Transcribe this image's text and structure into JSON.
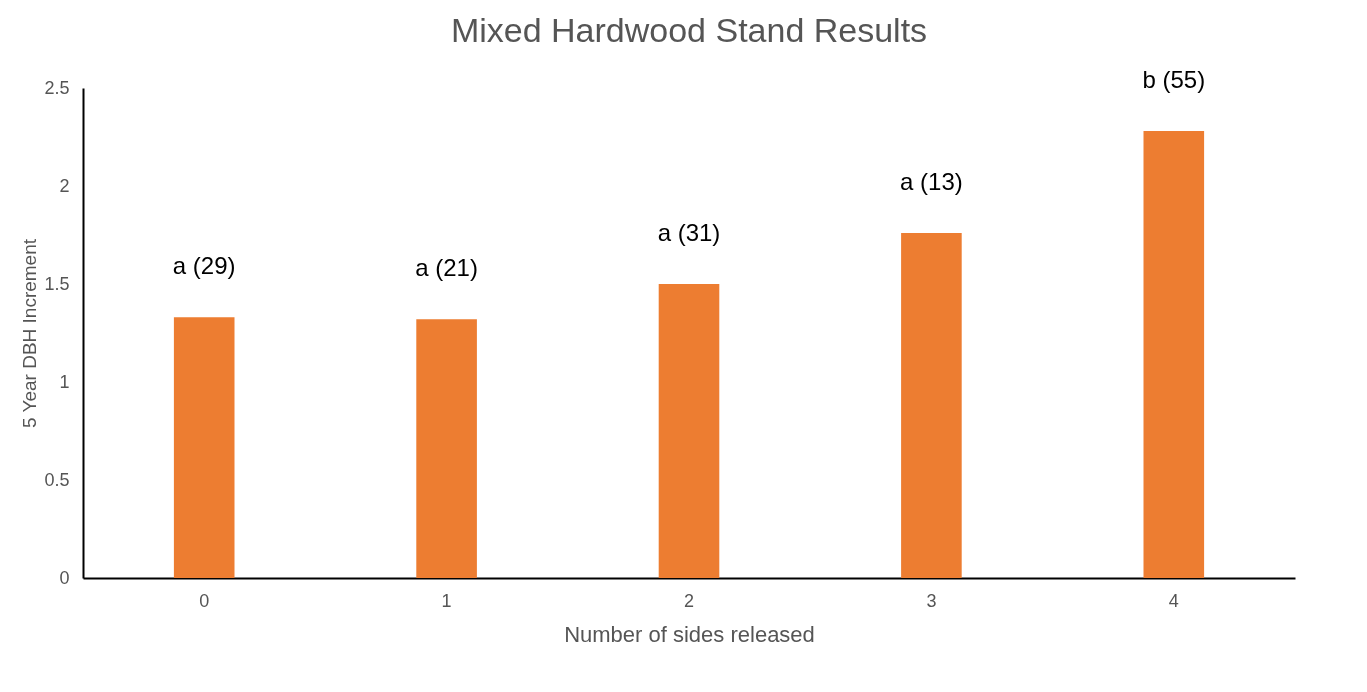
{
  "chart_data": {
    "type": "bar",
    "title": "Mixed Hardwood Stand Results",
    "xlabel": "Number of sides released",
    "ylabel": "5 Year DBH Increment",
    "categories": [
      "0",
      "1",
      "2",
      "3",
      "4"
    ],
    "values": [
      1.33,
      1.32,
      1.5,
      1.76,
      2.28
    ],
    "color": "#ed7d31",
    "ylim": [
      0,
      2.5
    ],
    "yticks": [
      0,
      0.5,
      1,
      1.5,
      2,
      2.5
    ],
    "grid": false,
    "annotations": [
      {
        "text": "a (29)",
        "x": "0",
        "y": 1.33
      },
      {
        "text": "a (21)",
        "x": "1",
        "y": 1.32
      },
      {
        "text": "a (31)",
        "x": "2",
        "y": 1.5
      },
      {
        "text": "a (13)",
        "x": "3",
        "y": 1.76
      },
      {
        "text": "b (55)",
        "x": "4",
        "y": 2.28
      }
    ]
  }
}
